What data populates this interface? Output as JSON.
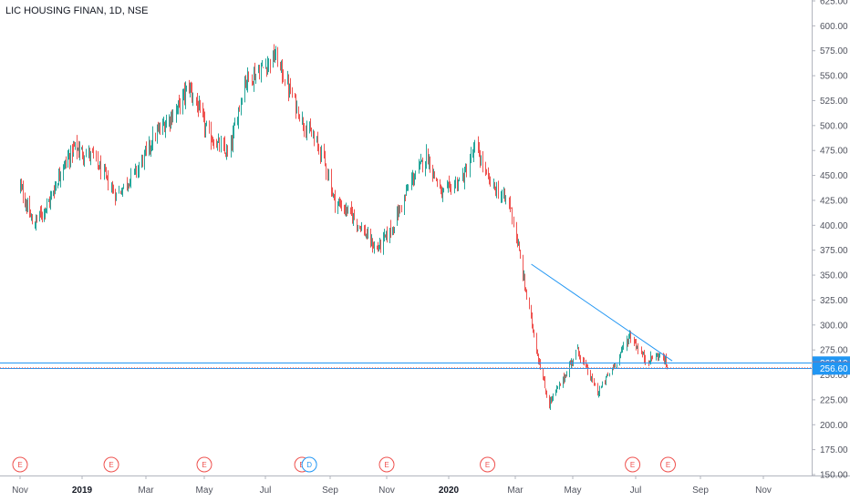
{
  "header": {
    "symbol_title": "LIC HOUSING FINAN, 1D, NSE"
  },
  "colors": {
    "up": "#26a69a",
    "down": "#ef5350",
    "trendline": "#2196f3",
    "hline": "#2196f3",
    "tag_blue": "#2196f3",
    "tag_red": "#ef5350",
    "event_earnings": "#ef5350",
    "event_dividend": "#2196f3",
    "grid": "#f0f3fa",
    "axis_text": "#50535e"
  },
  "chart_data": {
    "type": "candlestick",
    "y_axis": {
      "ylim": [
        150,
        625
      ],
      "ticks": [
        "150.00",
        "175.00",
        "200.00",
        "225.00",
        "250.00",
        "275.00",
        "300.00",
        "325.00",
        "350.00",
        "375.00",
        "400.00",
        "425.00",
        "450.00",
        "475.00",
        "500.00",
        "525.00",
        "550.00",
        "575.00",
        "600.00",
        "625.00"
      ]
    },
    "x_axis": {
      "ticks": [
        {
          "label": "Nov",
          "bold": false
        },
        {
          "label": "2019",
          "bold": true
        },
        {
          "label": "Mar",
          "bold": false
        },
        {
          "label": "May",
          "bold": false
        },
        {
          "label": "Jul",
          "bold": false
        },
        {
          "label": "Sep",
          "bold": false
        },
        {
          "label": "Nov",
          "bold": false
        },
        {
          "label": "2020",
          "bold": true
        },
        {
          "label": "Mar",
          "bold": false
        },
        {
          "label": "May",
          "bold": false
        },
        {
          "label": "Jul",
          "bold": false
        },
        {
          "label": "Sep",
          "bold": false
        },
        {
          "label": "Nov",
          "bold": false
        }
      ]
    },
    "price_path": [
      [
        "2018-10-01",
        440
      ],
      [
        "2018-10-20",
        400
      ],
      [
        "2018-11-10",
        420
      ],
      [
        "2018-12-01",
        455
      ],
      [
        "2018-12-20",
        478
      ],
      [
        "2019-01-10",
        470
      ],
      [
        "2019-02-01",
        430
      ],
      [
        "2019-02-20",
        455
      ],
      [
        "2019-03-10",
        490
      ],
      [
        "2019-04-01",
        515
      ],
      [
        "2019-04-15",
        540
      ],
      [
        "2019-05-05",
        490
      ],
      [
        "2019-05-25",
        470
      ],
      [
        "2019-06-10",
        545
      ],
      [
        "2019-06-25",
        555
      ],
      [
        "2019-07-10",
        570
      ],
      [
        "2019-07-20",
        545
      ],
      [
        "2019-08-05",
        505
      ],
      [
        "2019-08-25",
        470
      ],
      [
        "2019-09-05",
        425
      ],
      [
        "2019-09-25",
        410
      ],
      [
        "2019-10-20",
        375
      ],
      [
        "2019-11-05",
        395
      ],
      [
        "2019-11-25",
        445
      ],
      [
        "2019-12-10",
        470
      ],
      [
        "2019-12-25",
        430
      ],
      [
        "2020-01-15",
        450
      ],
      [
        "2020-01-25",
        480
      ],
      [
        "2020-02-05",
        445
      ],
      [
        "2020-02-25",
        420
      ],
      [
        "2020-03-10",
        345
      ],
      [
        "2020-03-22",
        280
      ],
      [
        "2020-04-05",
        220
      ],
      [
        "2020-04-20",
        245
      ],
      [
        "2020-05-05",
        275
      ],
      [
        "2020-05-25",
        232
      ],
      [
        "2020-06-10",
        260
      ],
      [
        "2020-06-25",
        290
      ],
      [
        "2020-07-10",
        265
      ],
      [
        "2020-07-25",
        270
      ],
      [
        "2020-08-01",
        257
      ]
    ],
    "trendline": {
      "from": [
        "2020-03-18",
        361
      ],
      "to": [
        "2020-08-05",
        264
      ]
    },
    "horizontal_lines": [
      262.1,
      256.6
    ],
    "price_labels": [
      {
        "value": 262.1,
        "text": "262.10",
        "color": "blue"
      },
      {
        "value": 257.0,
        "text": "257.00",
        "color": "red"
      },
      {
        "value": 256.6,
        "text": "256.60",
        "color": "blue"
      }
    ],
    "events": [
      {
        "date": "2018-10-01",
        "type": "E"
      },
      {
        "date": "2019-01-28",
        "type": "E"
      },
      {
        "date": "2019-05-01",
        "type": "E"
      },
      {
        "date": "2019-08-05",
        "type": "E"
      },
      {
        "date": "2019-08-12",
        "type": "D"
      },
      {
        "date": "2019-11-01",
        "type": "E"
      },
      {
        "date": "2020-02-05",
        "type": "E"
      },
      {
        "date": "2020-06-28",
        "type": "E"
      },
      {
        "date": "2020-08-01",
        "type": "E"
      }
    ]
  }
}
